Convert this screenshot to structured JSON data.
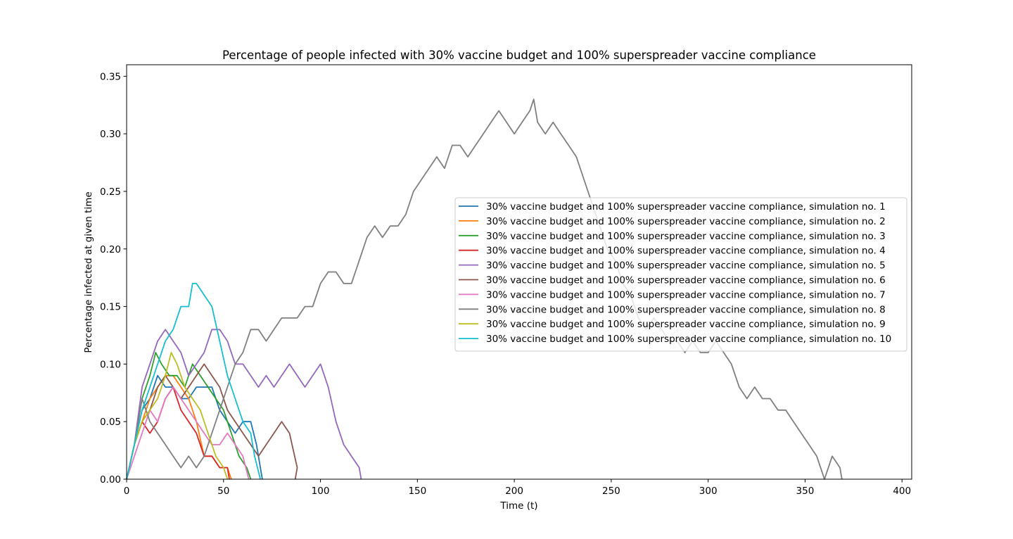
{
  "chart_data": {
    "type": "line",
    "title": "Percentage of people infected with 30% vaccine budget and 100% superspreader vaccine compliance",
    "xlabel": "Time (t)",
    "ylabel": "Percentage infected at given time",
    "xlim": [
      0,
      405
    ],
    "ylim": [
      0,
      0.36
    ],
    "xticks": [
      0,
      50,
      100,
      150,
      200,
      250,
      300,
      350,
      400
    ],
    "yticks": [
      0.0,
      0.05,
      0.1,
      0.15,
      0.2,
      0.25,
      0.3,
      0.35
    ],
    "xtick_labels": [
      "0",
      "50",
      "100",
      "150",
      "200",
      "250",
      "300",
      "350",
      "400"
    ],
    "ytick_labels": [
      "0.00",
      "0.05",
      "0.10",
      "0.15",
      "0.20",
      "0.25",
      "0.30",
      "0.35"
    ],
    "grid": false,
    "legend_position": "center-right",
    "series": [
      {
        "name": "30% vaccine budget and 100% superspreader vaccine compliance, simulation no. 1",
        "color": "#1f77b4",
        "points": [
          [
            0,
            0.0
          ],
          [
            4,
            0.03
          ],
          [
            8,
            0.06
          ],
          [
            12,
            0.07
          ],
          [
            16,
            0.09
          ],
          [
            20,
            0.08
          ],
          [
            24,
            0.08
          ],
          [
            28,
            0.07
          ],
          [
            32,
            0.07
          ],
          [
            36,
            0.08
          ],
          [
            40,
            0.08
          ],
          [
            44,
            0.08
          ],
          [
            48,
            0.06
          ],
          [
            52,
            0.05
          ],
          [
            56,
            0.04
          ],
          [
            60,
            0.05
          ],
          [
            64,
            0.05
          ],
          [
            67,
            0.03
          ],
          [
            70,
            0.0
          ]
        ]
      },
      {
        "name": "30% vaccine budget and 100% superspreader vaccine compliance, simulation no. 2",
        "color": "#ff7f0e",
        "points": [
          [
            0,
            0.0
          ],
          [
            4,
            0.03
          ],
          [
            8,
            0.05
          ],
          [
            12,
            0.07
          ],
          [
            16,
            0.08
          ],
          [
            20,
            0.09
          ],
          [
            24,
            0.09
          ],
          [
            28,
            0.08
          ],
          [
            32,
            0.07
          ],
          [
            36,
            0.05
          ],
          [
            40,
            0.02
          ],
          [
            44,
            0.02
          ],
          [
            48,
            0.01
          ],
          [
            52,
            0.01
          ],
          [
            54,
            0.0
          ]
        ]
      },
      {
        "name": "30% vaccine budget and 100% superspreader vaccine compliance, simulation no. 3",
        "color": "#2ca02c",
        "points": [
          [
            0,
            0.0
          ],
          [
            4,
            0.03
          ],
          [
            8,
            0.07
          ],
          [
            12,
            0.09
          ],
          [
            15,
            0.11
          ],
          [
            18,
            0.1
          ],
          [
            22,
            0.09
          ],
          [
            26,
            0.09
          ],
          [
            30,
            0.08
          ],
          [
            34,
            0.1
          ],
          [
            38,
            0.09
          ],
          [
            42,
            0.08
          ],
          [
            46,
            0.07
          ],
          [
            50,
            0.06
          ],
          [
            54,
            0.04
          ],
          [
            58,
            0.02
          ],
          [
            62,
            0.01
          ],
          [
            64,
            0.0
          ]
        ]
      },
      {
        "name": "30% vaccine budget and 100% superspreader vaccine compliance, simulation no. 4",
        "color": "#d62728",
        "points": [
          [
            0,
            0.0
          ],
          [
            4,
            0.03
          ],
          [
            8,
            0.05
          ],
          [
            12,
            0.04
          ],
          [
            16,
            0.05
          ],
          [
            20,
            0.07
          ],
          [
            24,
            0.08
          ],
          [
            28,
            0.06
          ],
          [
            32,
            0.05
          ],
          [
            36,
            0.04
          ],
          [
            40,
            0.02
          ],
          [
            44,
            0.02
          ],
          [
            48,
            0.01
          ],
          [
            52,
            0.01
          ],
          [
            53,
            0.0
          ]
        ]
      },
      {
        "name": "30% vaccine budget and 100% superspreader vaccine compliance, simulation no. 5",
        "color": "#9467bd",
        "points": [
          [
            0,
            0.0
          ],
          [
            4,
            0.03
          ],
          [
            8,
            0.08
          ],
          [
            12,
            0.1
          ],
          [
            16,
            0.12
          ],
          [
            20,
            0.13
          ],
          [
            24,
            0.12
          ],
          [
            28,
            0.11
          ],
          [
            32,
            0.09
          ],
          [
            36,
            0.1
          ],
          [
            40,
            0.11
          ],
          [
            44,
            0.13
          ],
          [
            48,
            0.13
          ],
          [
            52,
            0.12
          ],
          [
            56,
            0.1
          ],
          [
            60,
            0.1
          ],
          [
            64,
            0.09
          ],
          [
            68,
            0.08
          ],
          [
            72,
            0.09
          ],
          [
            76,
            0.08
          ],
          [
            80,
            0.09
          ],
          [
            84,
            0.1
          ],
          [
            88,
            0.09
          ],
          [
            92,
            0.08
          ],
          [
            96,
            0.09
          ],
          [
            100,
            0.1
          ],
          [
            104,
            0.08
          ],
          [
            108,
            0.05
          ],
          [
            112,
            0.03
          ],
          [
            116,
            0.02
          ],
          [
            120,
            0.01
          ],
          [
            121,
            0.0
          ]
        ]
      },
      {
        "name": "30% vaccine budget and 100% superspreader vaccine compliance, simulation no. 6",
        "color": "#8c564b",
        "points": [
          [
            0,
            0.0
          ],
          [
            4,
            0.03
          ],
          [
            8,
            0.05
          ],
          [
            12,
            0.06
          ],
          [
            16,
            0.08
          ],
          [
            20,
            0.09
          ],
          [
            24,
            0.08
          ],
          [
            28,
            0.07
          ],
          [
            32,
            0.08
          ],
          [
            36,
            0.09
          ],
          [
            40,
            0.1
          ],
          [
            44,
            0.09
          ],
          [
            48,
            0.08
          ],
          [
            52,
            0.06
          ],
          [
            56,
            0.05
          ],
          [
            60,
            0.04
          ],
          [
            64,
            0.03
          ],
          [
            68,
            0.02
          ],
          [
            72,
            0.03
          ],
          [
            76,
            0.04
          ],
          [
            80,
            0.05
          ],
          [
            84,
            0.04
          ],
          [
            88,
            0.01
          ],
          [
            87,
            0.0
          ]
        ]
      },
      {
        "name": "30% vaccine budget and 100% superspreader vaccine compliance, simulation no. 7",
        "color": "#e377c2",
        "points": [
          [
            0,
            0.0
          ],
          [
            4,
            0.02
          ],
          [
            8,
            0.04
          ],
          [
            12,
            0.06
          ],
          [
            16,
            0.05
          ],
          [
            20,
            0.07
          ],
          [
            24,
            0.08
          ],
          [
            28,
            0.07
          ],
          [
            32,
            0.06
          ],
          [
            36,
            0.05
          ],
          [
            40,
            0.04
          ],
          [
            44,
            0.03
          ],
          [
            48,
            0.03
          ],
          [
            52,
            0.04
          ],
          [
            56,
            0.03
          ],
          [
            60,
            0.02
          ],
          [
            63,
            0.0
          ]
        ]
      },
      {
        "name": "30% vaccine budget and 100% superspreader vaccine compliance, simulation no. 8",
        "color": "#7f7f7f",
        "points": [
          [
            0,
            0.0
          ],
          [
            4,
            0.03
          ],
          [
            8,
            0.07
          ],
          [
            12,
            0.05
          ],
          [
            16,
            0.04
          ],
          [
            20,
            0.03
          ],
          [
            24,
            0.02
          ],
          [
            28,
            0.01
          ],
          [
            32,
            0.02
          ],
          [
            36,
            0.01
          ],
          [
            40,
            0.02
          ],
          [
            44,
            0.04
          ],
          [
            48,
            0.06
          ],
          [
            52,
            0.08
          ],
          [
            56,
            0.1
          ],
          [
            60,
            0.11
          ],
          [
            64,
            0.13
          ],
          [
            68,
            0.13
          ],
          [
            72,
            0.12
          ],
          [
            76,
            0.13
          ],
          [
            80,
            0.14
          ],
          [
            84,
            0.14
          ],
          [
            88,
            0.14
          ],
          [
            92,
            0.15
          ],
          [
            96,
            0.15
          ],
          [
            100,
            0.17
          ],
          [
            104,
            0.18
          ],
          [
            108,
            0.18
          ],
          [
            112,
            0.17
          ],
          [
            116,
            0.17
          ],
          [
            120,
            0.19
          ],
          [
            124,
            0.21
          ],
          [
            128,
            0.22
          ],
          [
            132,
            0.21
          ],
          [
            136,
            0.22
          ],
          [
            140,
            0.22
          ],
          [
            144,
            0.23
          ],
          [
            148,
            0.25
          ],
          [
            152,
            0.26
          ],
          [
            156,
            0.27
          ],
          [
            160,
            0.28
          ],
          [
            164,
            0.27
          ],
          [
            168,
            0.29
          ],
          [
            172,
            0.29
          ],
          [
            176,
            0.28
          ],
          [
            180,
            0.29
          ],
          [
            184,
            0.3
          ],
          [
            188,
            0.31
          ],
          [
            192,
            0.32
          ],
          [
            196,
            0.31
          ],
          [
            200,
            0.3
          ],
          [
            204,
            0.31
          ],
          [
            208,
            0.32
          ],
          [
            210,
            0.33
          ],
          [
            212,
            0.31
          ],
          [
            216,
            0.3
          ],
          [
            220,
            0.31
          ],
          [
            224,
            0.3
          ],
          [
            228,
            0.29
          ],
          [
            232,
            0.28
          ],
          [
            236,
            0.26
          ],
          [
            240,
            0.24
          ],
          [
            244,
            0.22
          ],
          [
            248,
            0.2
          ],
          [
            252,
            0.19
          ],
          [
            256,
            0.17
          ],
          [
            260,
            0.16
          ],
          [
            264,
            0.14
          ],
          [
            268,
            0.13
          ],
          [
            272,
            0.14
          ],
          [
            276,
            0.13
          ],
          [
            280,
            0.12
          ],
          [
            284,
            0.12
          ],
          [
            288,
            0.11
          ],
          [
            292,
            0.12
          ],
          [
            296,
            0.11
          ],
          [
            300,
            0.11
          ],
          [
            304,
            0.12
          ],
          [
            308,
            0.11
          ],
          [
            312,
            0.1
          ],
          [
            316,
            0.08
          ],
          [
            320,
            0.07
          ],
          [
            324,
            0.08
          ],
          [
            328,
            0.07
          ],
          [
            332,
            0.07
          ],
          [
            336,
            0.06
          ],
          [
            340,
            0.06
          ],
          [
            344,
            0.05
          ],
          [
            348,
            0.04
          ],
          [
            352,
            0.03
          ],
          [
            356,
            0.02
          ],
          [
            360,
            0.0
          ],
          [
            364,
            0.02
          ],
          [
            368,
            0.01
          ],
          [
            369,
            0.0
          ]
        ]
      },
      {
        "name": "30% vaccine budget and 100% superspreader vaccine compliance, simulation no. 9",
        "color": "#bcbd22",
        "points": [
          [
            0,
            0.0
          ],
          [
            4,
            0.03
          ],
          [
            8,
            0.05
          ],
          [
            12,
            0.06
          ],
          [
            16,
            0.07
          ],
          [
            20,
            0.09
          ],
          [
            23,
            0.11
          ],
          [
            26,
            0.1
          ],
          [
            30,
            0.08
          ],
          [
            34,
            0.07
          ],
          [
            38,
            0.06
          ],
          [
            42,
            0.04
          ],
          [
            46,
            0.02
          ],
          [
            50,
            0.01
          ],
          [
            52,
            0.0
          ]
        ]
      },
      {
        "name": "30% vaccine budget and 100% superspreader vaccine compliance, simulation no. 10",
        "color": "#17becf",
        "points": [
          [
            0,
            0.0
          ],
          [
            4,
            0.03
          ],
          [
            8,
            0.06
          ],
          [
            12,
            0.08
          ],
          [
            16,
            0.1
          ],
          [
            20,
            0.12
          ],
          [
            24,
            0.13
          ],
          [
            28,
            0.15
          ],
          [
            32,
            0.15
          ],
          [
            34,
            0.17
          ],
          [
            36,
            0.17
          ],
          [
            40,
            0.16
          ],
          [
            44,
            0.15
          ],
          [
            48,
            0.12
          ],
          [
            52,
            0.09
          ],
          [
            56,
            0.07
          ],
          [
            60,
            0.05
          ],
          [
            64,
            0.04
          ],
          [
            66,
            0.02
          ],
          [
            69,
            0.0
          ]
        ]
      }
    ]
  }
}
